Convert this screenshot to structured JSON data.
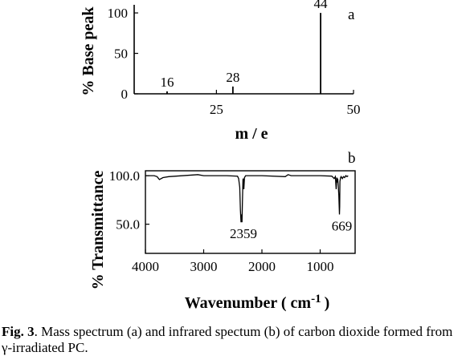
{
  "chart_data": [
    {
      "type": "bar",
      "panel_label": "a",
      "xlabel": "m / e",
      "ylabel": "% Base peak",
      "xlim": [
        10,
        50
      ],
      "ylim": [
        0,
        110
      ],
      "xticks": [
        25,
        50
      ],
      "yticks": [
        0,
        50,
        100
      ],
      "x": [
        16,
        28,
        44
      ],
      "values": [
        3,
        9,
        100
      ],
      "peak_labels": [
        "16",
        "28",
        "44"
      ]
    },
    {
      "type": "line",
      "panel_label": "b",
      "xlabel": "Wavenumber ( cm",
      "xlabel_sup": "-1",
      "xlabel_close": ")",
      "ylabel": "% Transmittance",
      "xlim": [
        4000,
        400
      ],
      "ylim": [
        20,
        105
      ],
      "xticks": [
        4000,
        3000,
        2000,
        1000
      ],
      "yticks": [
        50.0,
        100.0
      ],
      "ytick_labels": [
        "50.0",
        "100.0"
      ],
      "grid": false,
      "x": [
        4000,
        3850,
        3800,
        3760,
        3700,
        3600,
        3100,
        3000,
        2900,
        2600,
        2420,
        2400,
        2380,
        2370,
        2362,
        2359,
        2350,
        2342,
        2335,
        2325,
        2320,
        2310,
        2300,
        2280,
        2250,
        2000,
        1600,
        1550,
        1500,
        1000,
        800,
        760,
        740,
        725,
        715,
        705,
        700,
        690,
        680,
        672,
        669,
        665,
        660,
        650,
        640,
        620,
        600,
        580,
        560,
        540,
        520
      ],
      "y": [
        100,
        100,
        99,
        96,
        98,
        99,
        101,
        100,
        100,
        100,
        99.5,
        97,
        88,
        65,
        55,
        52,
        60,
        52,
        72,
        96,
        97,
        86,
        98,
        100,
        100,
        100,
        99,
        101,
        100,
        100,
        99.5,
        97,
        99,
        86,
        98,
        93,
        97,
        90,
        80,
        65,
        60,
        68,
        94,
        98,
        99,
        97,
        99,
        98,
        100,
        99,
        100
      ],
      "peak_labels": [
        "2359",
        "669"
      ]
    }
  ],
  "caption": {
    "fig_label": "Fig. 3",
    "text": ". Mass spectrum (a) and infrared spectum (b) of carbon dioxide formed from γ-irradiated PC."
  }
}
